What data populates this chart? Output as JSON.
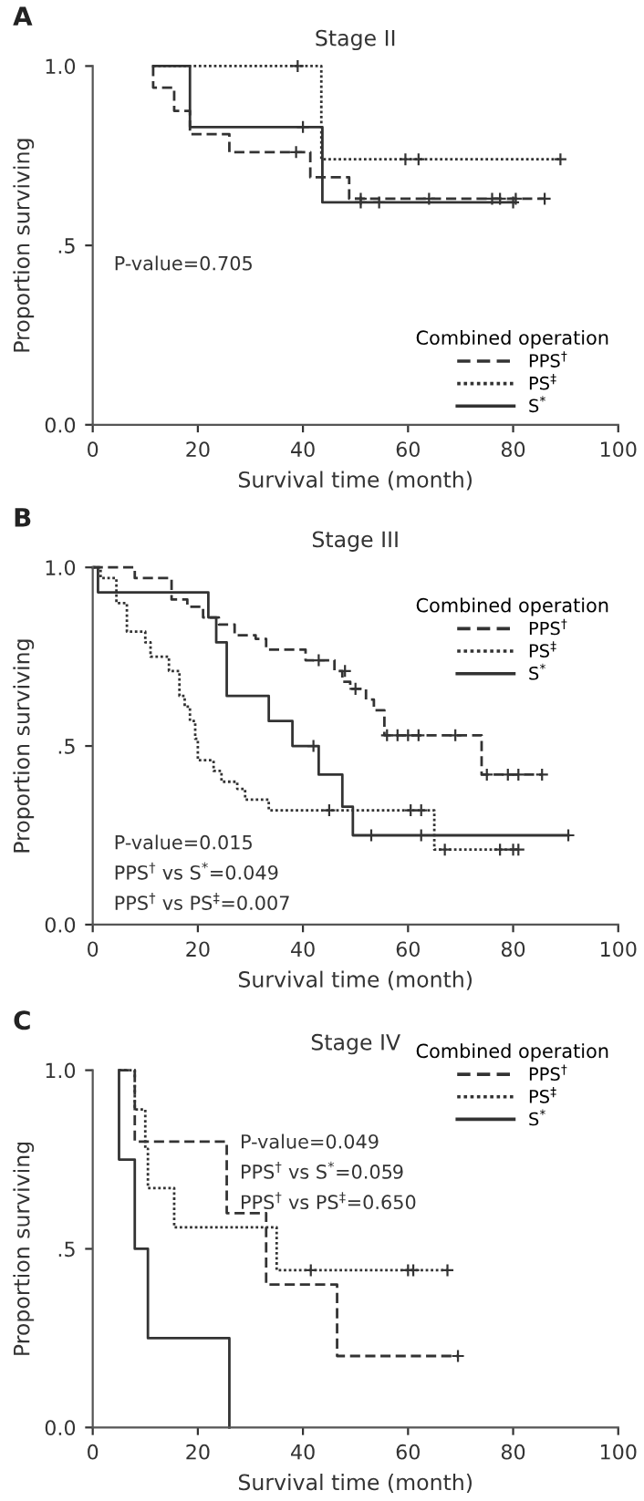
{
  "chart_data": [
    {
      "type": "step",
      "title": "Stage II",
      "xlabel": "Survival time (month)",
      "ylabel": "Proportion surviving",
      "legend_title": "Combined operation",
      "legend": "bottom right",
      "grid": false,
      "xlim": [
        0,
        100
      ],
      "ylim": [
        0,
        1
      ],
      "xticks": [
        0,
        20,
        40,
        60,
        80,
        100
      ],
      "yticks": [
        {
          "value": 0,
          "label": "0.0"
        },
        {
          "value": 0.5,
          "label": ".5"
        },
        {
          "value": 1,
          "label": "1.0"
        }
      ],
      "annotations": [
        "A",
        "P-value=0.705"
      ],
      "series": [
        {
          "name": "PPS$^{†}$",
          "color": "#333333",
          "line_style": "dashed",
          "x": [
            11.5,
            11.5,
            15.5,
            18.5,
            26,
            41.4,
            48.8,
            86
          ],
          "values": [
            1.0,
            0.94,
            0.875,
            0.81,
            0.76,
            0.69,
            0.63,
            0.63
          ]
        },
        {
          "name": "PS$^{‡}$",
          "color": "#333333",
          "line_style": "dotted",
          "x": [
            11.5,
            43.5,
            89
          ],
          "values": [
            1.0,
            0.74,
            0.74
          ]
        },
        {
          "name": "S$^{*}$",
          "color": "#333333",
          "line_style": "solid",
          "x": [
            11.5,
            18.5,
            43.7,
            80
          ],
          "values": [
            1.0,
            0.83,
            0.62,
            0.62
          ]
        },
        {
          "type": "scatter",
          "marker": "cross",
          "color": "#333333",
          "x": [
            38.7,
            51,
            64,
            76,
            77.5,
            80.5,
            86
          ],
          "values": [
            0.76,
            0.63,
            0.63,
            0.63,
            0.63,
            0.63,
            0.63
          ]
        },
        {
          "type": "scatter",
          "marker": "cross",
          "color": "#333333",
          "x": [
            39,
            59.5,
            62,
            89
          ],
          "values": [
            1.0,
            0.74,
            0.74,
            0.74
          ]
        },
        {
          "type": "scatter",
          "marker": "cross",
          "color": "#333333",
          "x": [
            40,
            51,
            54.5,
            80
          ],
          "values": [
            0.83,
            0.62,
            0.62,
            0.62
          ]
        }
      ]
    },
    {
      "type": "step",
      "title": "Stage III",
      "xlabel": "Survival time (month)",
      "ylabel": "Proportion surviving",
      "legend_title": "Combined operation",
      "legend": "top right",
      "grid": false,
      "xlim": [
        0,
        100
      ],
      "ylim": [
        0,
        1
      ],
      "xticks": [
        0,
        20,
        40,
        60,
        80,
        100
      ],
      "yticks": [
        {
          "value": 0,
          "label": "0.0"
        },
        {
          "value": 0.5,
          "label": ".5"
        },
        {
          "value": 1,
          "label": "1.0"
        }
      ],
      "annotations": [
        "B",
        "P-value=0.015",
        "PPS$^{†}$ vs S$^{*}$=0.049",
        "PPS$^{†}$ vs PS$^{‡}$=0.007"
      ],
      "series": [
        {
          "name": "PPS$^{†}$",
          "color": "#333333",
          "line_style": "dashed",
          "x": [
            0,
            8,
            15,
            18,
            21,
            24,
            27,
            31,
            33,
            40.5,
            46,
            47.5,
            49,
            52,
            53.5,
            55.5,
            74,
            85.5
          ],
          "values": [
            1.0,
            0.97,
            0.91,
            0.89,
            0.86,
            0.84,
            0.81,
            0.8,
            0.77,
            0.74,
            0.71,
            0.68,
            0.66,
            0.63,
            0.6,
            0.53,
            0.42,
            0.42
          ]
        },
        {
          "name": "PS$^{‡}$",
          "color": "#333333",
          "line_style": "dotted",
          "x": [
            0,
            1.5,
            4.5,
            6.5,
            10,
            11,
            14.5,
            16.5,
            17.5,
            18.5,
            19.5,
            20,
            23,
            24.5,
            27.5,
            29,
            33.5,
            65,
            81
          ],
          "values": [
            1.0,
            0.97,
            0.9,
            0.82,
            0.79,
            0.75,
            0.71,
            0.64,
            0.61,
            0.57,
            0.52,
            0.46,
            0.43,
            0.4,
            0.38,
            0.35,
            0.32,
            0.21,
            0.21
          ]
        },
        {
          "name": "S$^{*}$",
          "color": "#333333",
          "line_style": "solid",
          "x": [
            0,
            1,
            22,
            23.5,
            25.5,
            33.5,
            38,
            43,
            47.5,
            49.5,
            90.5
          ],
          "values": [
            1.0,
            0.93,
            0.86,
            0.79,
            0.64,
            0.57,
            0.5,
            0.42,
            0.33,
            0.25,
            0.25
          ]
        },
        {
          "type": "scatter",
          "marker": "cross",
          "color": "#333333",
          "x": [
            43,
            48,
            50,
            56,
            58,
            60,
            62,
            69,
            75,
            79,
            81,
            85.5
          ],
          "values": [
            0.74,
            0.71,
            0.66,
            0.53,
            0.53,
            0.53,
            0.53,
            0.53,
            0.42,
            0.42,
            0.42,
            0.42
          ]
        },
        {
          "type": "scatter",
          "marker": "cross",
          "color": "#333333",
          "x": [
            45,
            60.5,
            62.5,
            67,
            77.5,
            80,
            81
          ],
          "values": [
            0.32,
            0.32,
            0.32,
            0.21,
            0.21,
            0.21,
            0.21
          ]
        },
        {
          "type": "scatter",
          "marker": "cross",
          "color": "#333333",
          "x": [
            42,
            53,
            62.5,
            90.5
          ],
          "values": [
            0.5,
            0.25,
            0.25,
            0.25
          ]
        }
      ]
    },
    {
      "type": "step",
      "title": "Stage IV",
      "xlabel": "Survival time (month)",
      "ylabel": "Proportion surviving",
      "legend_title": "Combined operation",
      "legend": "top right",
      "grid": false,
      "xlim": [
        0,
        100
      ],
      "ylim": [
        0,
        1
      ],
      "xticks": [
        0,
        20,
        40,
        60,
        80,
        100
      ],
      "yticks": [
        {
          "value": 0,
          "label": "0.0"
        },
        {
          "value": 0.5,
          "label": ".5"
        },
        {
          "value": 1,
          "label": "1.0"
        }
      ],
      "annotations": [
        "C",
        "P-value=0.049",
        "PPS$^{†}$ vs S$^{*}$=0.059",
        "PPS$^{†}$ vs PS$^{‡}$=0.650"
      ],
      "series": [
        {
          "name": "PPS$^{†}$",
          "color": "#333333",
          "line_style": "dashed",
          "x": [
            5,
            8,
            25.5,
            33,
            46.5,
            69.5
          ],
          "values": [
            1.0,
            0.8,
            0.6,
            0.4,
            0.2,
            0.2
          ]
        },
        {
          "name": "PS$^{‡}$",
          "color": "#333333",
          "line_style": "dotted",
          "x": [
            5,
            8,
            10,
            10.5,
            15.5,
            35,
            67.5
          ],
          "values": [
            1.0,
            0.89,
            0.78,
            0.67,
            0.56,
            0.44,
            0.44
          ]
        },
        {
          "name": "S$^{*}$",
          "color": "#333333",
          "line_style": "solid",
          "x": [
            5,
            5,
            8,
            10.5,
            26
          ],
          "values": [
            1.0,
            0.75,
            0.5,
            0.25,
            0.0
          ]
        },
        {
          "type": "scatter",
          "marker": "cross",
          "color": "#333333",
          "x": [
            69.5
          ],
          "values": [
            0.2
          ]
        },
        {
          "type": "scatter",
          "marker": "cross",
          "color": "#333333",
          "x": [
            41.5,
            60,
            61,
            67.5
          ],
          "values": [
            0.44,
            0.44,
            0.44,
            0.44
          ]
        }
      ]
    }
  ]
}
